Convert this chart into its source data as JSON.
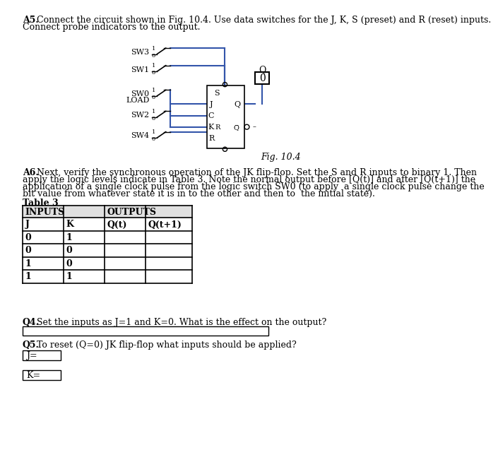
{
  "bg_color": "#ffffff",
  "blue_color": "#3355aa",
  "gray_color": "#cccccc",
  "font_size": 9,
  "a5_bold": "A5.",
  "a5_text": " Connect the circuit shown in Fig. 10.4. Use data switches for the J, K, S (preset) and R (reset) inputs.",
  "a5_text2": "Connect probe indicators to the output.",
  "a6_bold": "A6.",
  "a6_text1": " Next, verify the synchronous operation of the JK flip-flop. Set the S and R inputs to binary 1. Then",
  "a6_text2": "apply the logic levels indicate in Table 3. Note the normal output before [Q(t)] and after [Q(t+1)] the",
  "a6_text3": "application of a single clock pulse from the logic switch SW0 (to apply  a single clock pulse change the",
  "a6_text4": "bit value from whatever state it is in to the other and then to  the initial state).",
  "table3_title": "Table 3",
  "fig_label": "Fig. 10.4",
  "q4_bold": "Q4.",
  "q4_text": " Set the inputs as J=1 and K=0. What is the effect on the output?",
  "q5_bold": "Q5.",
  "q5_text": " To reset (Q=0) JK flip-flop what inputs should be applied?",
  "table_data": [
    [
      "0",
      "1",
      "",
      ""
    ],
    [
      "0",
      "0",
      "",
      ""
    ],
    [
      "1",
      "0",
      "",
      ""
    ],
    [
      "1",
      "1",
      "",
      ""
    ]
  ]
}
